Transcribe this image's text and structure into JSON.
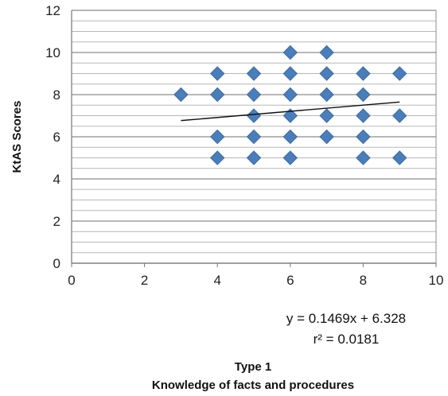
{
  "chart_data": {
    "type": "scatter",
    "title": "",
    "xlabel_line1": "Type 1",
    "xlabel_line2": "Knowledge of facts and procedures",
    "ylabel": "KtAS Scores",
    "xlim": [
      0,
      10
    ],
    "ylim": [
      0,
      12
    ],
    "x_ticks": [
      0,
      2,
      4,
      6,
      8,
      10
    ],
    "y_ticks": [
      0,
      2,
      4,
      6,
      8,
      10,
      12
    ],
    "grid": "horizontal",
    "marker": "diamond",
    "marker_color": "#4a7ebb",
    "points": [
      {
        "x": 3,
        "y": 8
      },
      {
        "x": 4,
        "y": 9
      },
      {
        "x": 4,
        "y": 8
      },
      {
        "x": 4,
        "y": 6
      },
      {
        "x": 4,
        "y": 5
      },
      {
        "x": 5,
        "y": 9
      },
      {
        "x": 5,
        "y": 8
      },
      {
        "x": 5,
        "y": 7
      },
      {
        "x": 5,
        "y": 6
      },
      {
        "x": 5,
        "y": 5
      },
      {
        "x": 6,
        "y": 10
      },
      {
        "x": 6,
        "y": 9
      },
      {
        "x": 6,
        "y": 8
      },
      {
        "x": 6,
        "y": 7
      },
      {
        "x": 6,
        "y": 6
      },
      {
        "x": 6,
        "y": 5
      },
      {
        "x": 7,
        "y": 10
      },
      {
        "x": 7,
        "y": 9
      },
      {
        "x": 7,
        "y": 8
      },
      {
        "x": 7,
        "y": 7
      },
      {
        "x": 7,
        "y": 6
      },
      {
        "x": 8,
        "y": 9
      },
      {
        "x": 8,
        "y": 8
      },
      {
        "x": 8,
        "y": 7
      },
      {
        "x": 8,
        "y": 6
      },
      {
        "x": 8,
        "y": 5
      },
      {
        "x": 9,
        "y": 9
      },
      {
        "x": 9,
        "y": 7
      },
      {
        "x": 9,
        "y": 5
      }
    ],
    "trendline": {
      "slope": 0.1469,
      "intercept": 6.328,
      "x_range": [
        3,
        9
      ],
      "equation": "y = 0.1469x + 6.328",
      "r2": "r² = 0.0181"
    }
  }
}
